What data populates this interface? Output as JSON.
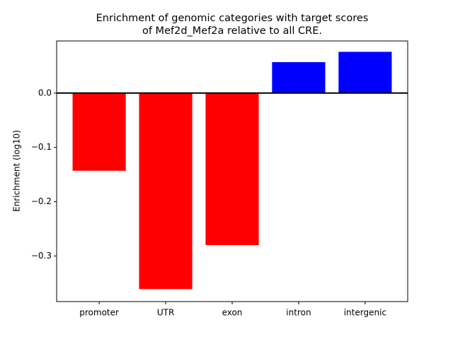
{
  "chart_data": {
    "type": "bar",
    "title": [
      "Enrichment of genomic categories with target scores",
      "of Mef2d_Mef2a relative to all CRE."
    ],
    "y_label": "Enrichment (log10)",
    "categories": [
      "promoter",
      "UTR",
      "exon",
      "intron",
      "intergenic"
    ],
    "values": [
      -0.143,
      -0.361,
      -0.28,
      0.057,
      0.076
    ],
    "colors": [
      "#ff0000",
      "#ff0000",
      "#ff0000",
      "#0000ff",
      "#0000ff"
    ],
    "ylim": [
      -0.384,
      0.096
    ],
    "yticks": [
      {
        "value": -0.3,
        "label": "−0.3"
      },
      {
        "value": -0.2,
        "label": "−0.2"
      },
      {
        "value": -0.1,
        "label": "−0.1"
      },
      {
        "value": 0,
        "label": "0.0"
      }
    ]
  }
}
